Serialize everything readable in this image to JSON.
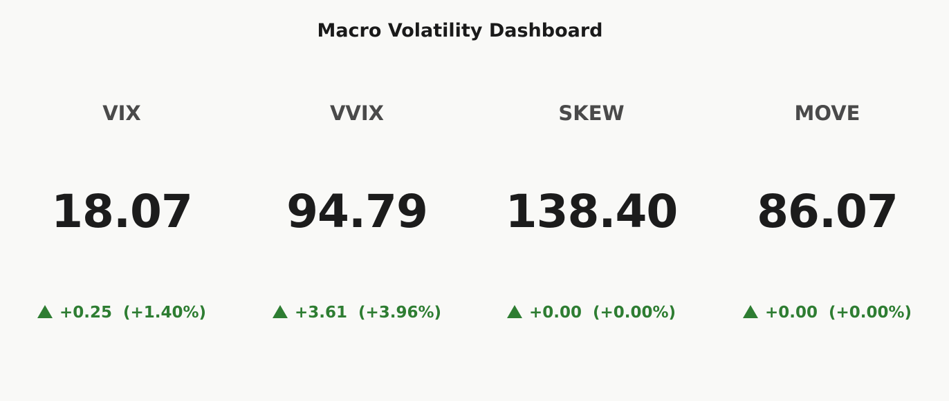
{
  "title": "Macro Volatility Dashboard",
  "colors": {
    "background": "#f9f9f7",
    "positive": "#2e7d32",
    "label": "#4a4a4a",
    "value": "#1c1c1c"
  },
  "indicators": [
    {
      "label": "VIX",
      "value": "18.07",
      "change": "+0.25",
      "change_pct": "(+1.40%)",
      "direction_icon": "up-triangle-icon"
    },
    {
      "label": "VVIX",
      "value": "94.79",
      "change": "+3.61",
      "change_pct": "(+3.96%)",
      "direction_icon": "up-triangle-icon"
    },
    {
      "label": "SKEW",
      "value": "138.40",
      "change": "+0.00",
      "change_pct": "(+0.00%)",
      "direction_icon": "up-triangle-icon"
    },
    {
      "label": "MOVE",
      "value": "86.07",
      "change": "+0.00",
      "change_pct": "(+0.00%)",
      "direction_icon": "up-triangle-icon"
    }
  ]
}
